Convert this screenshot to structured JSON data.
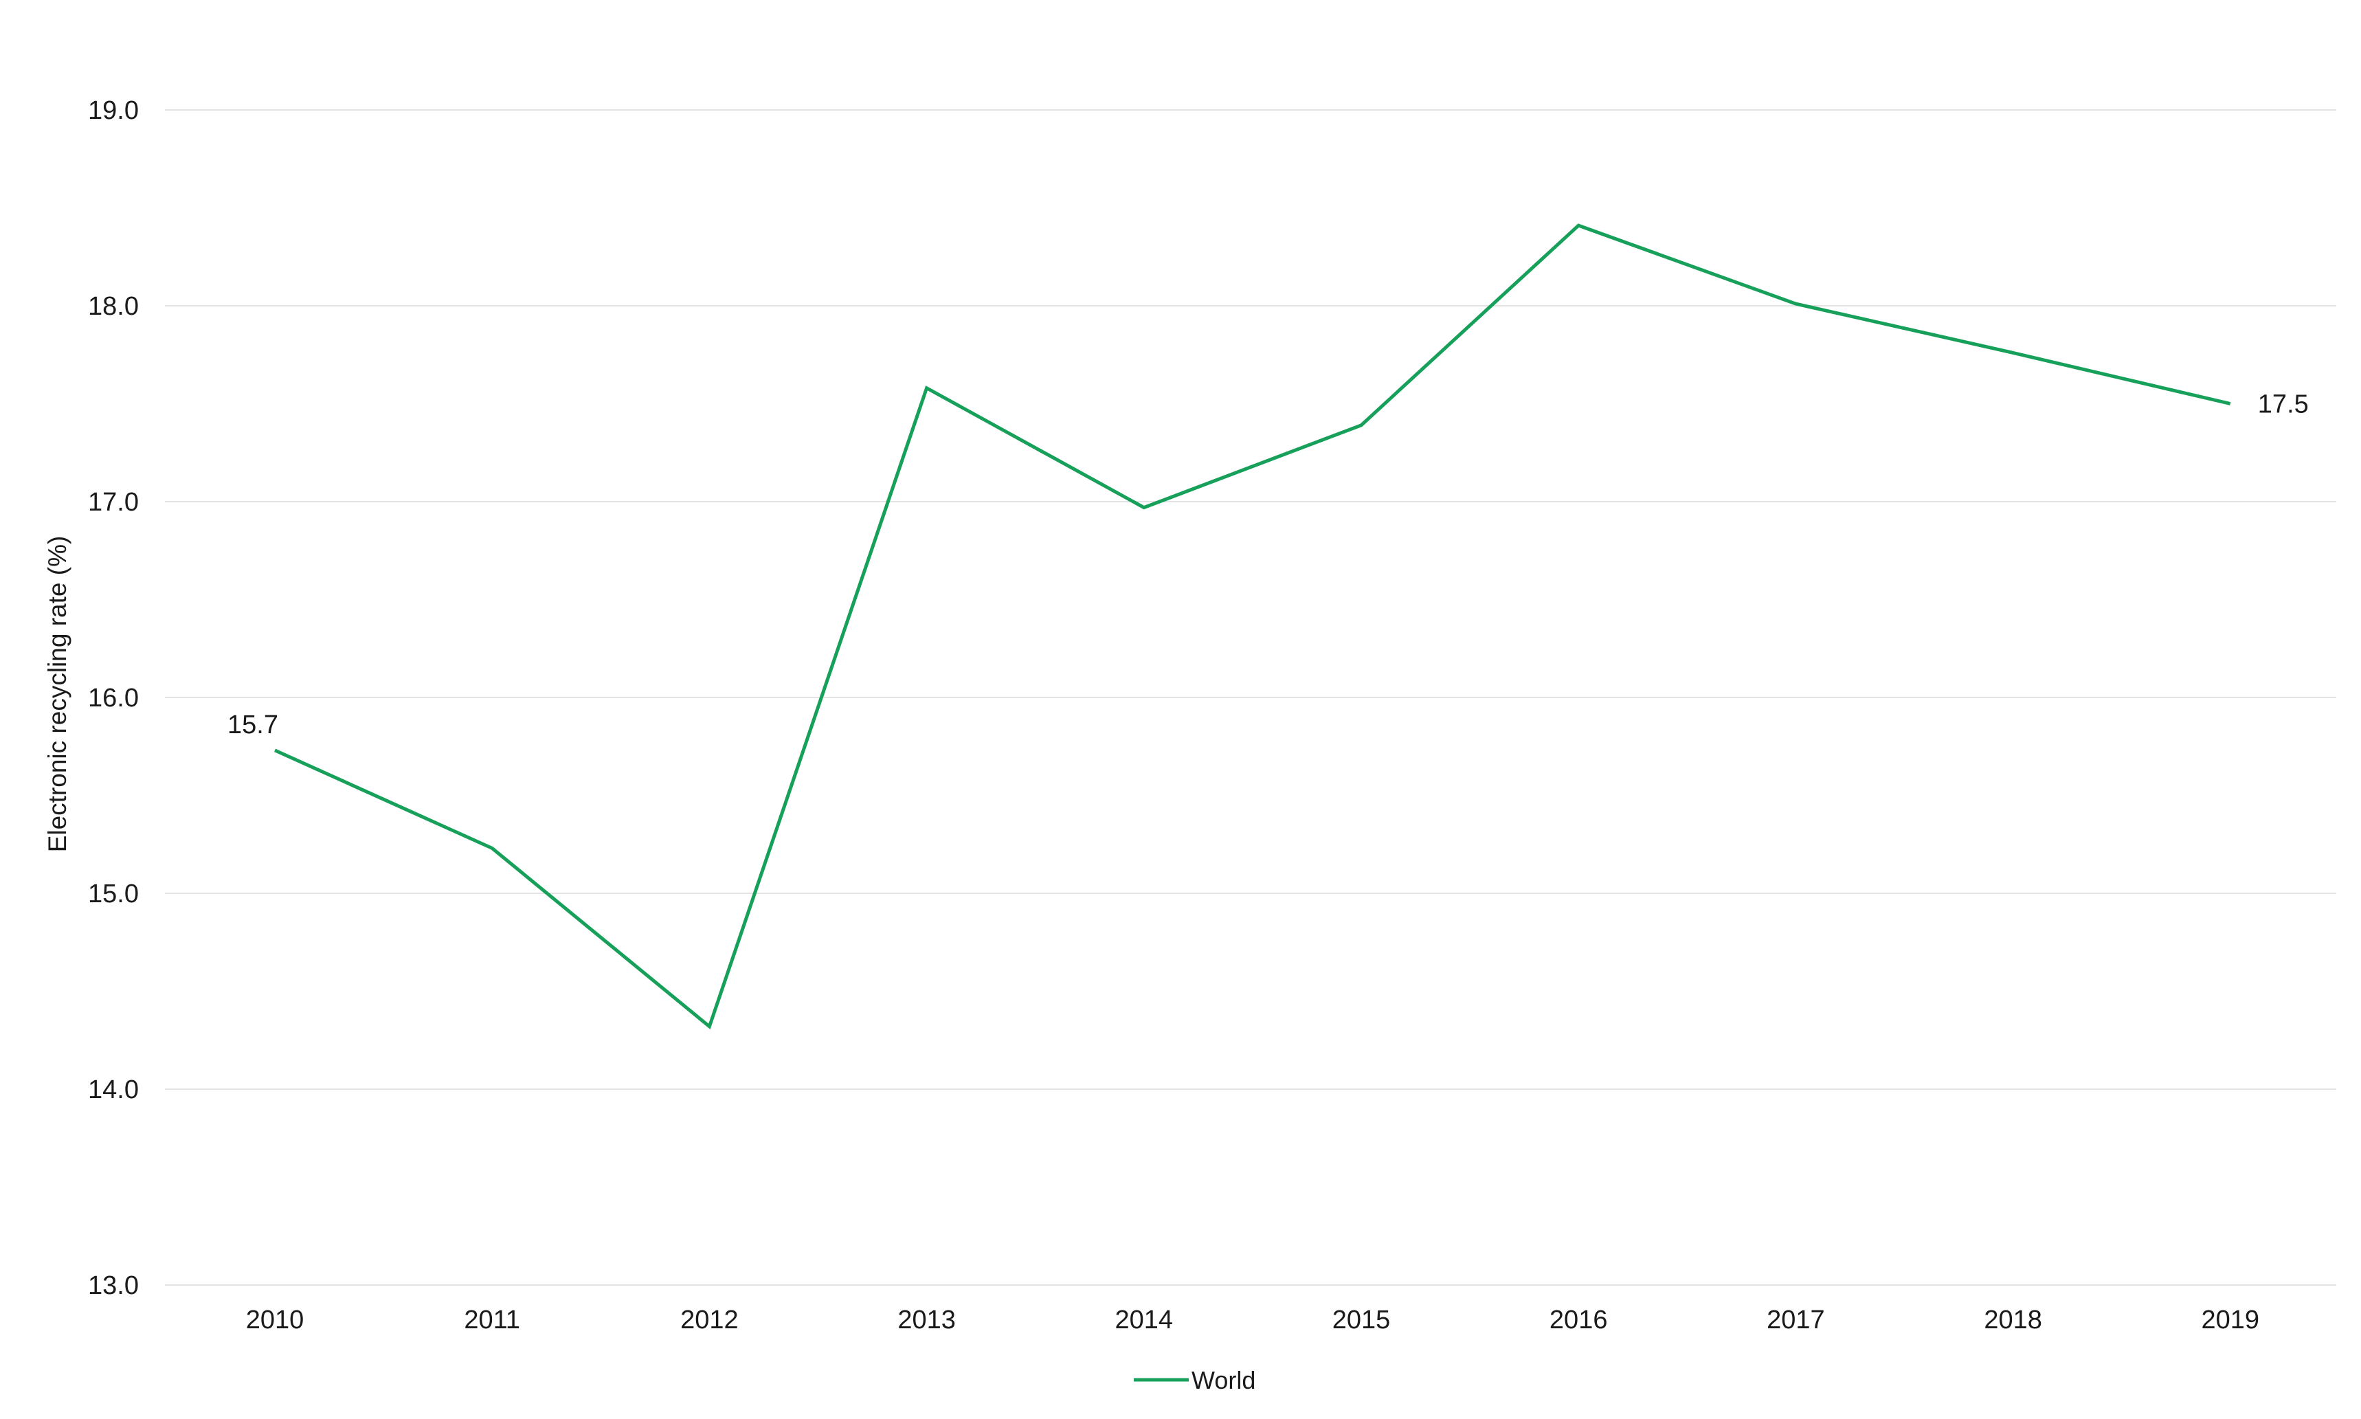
{
  "chart_data": {
    "type": "line",
    "title": "",
    "xlabel": "",
    "ylabel": "Electronic  recycling rate (%)",
    "ylim": [
      13.0,
      19.0
    ],
    "y_ticks": [
      "13.0",
      "14.0",
      "15.0",
      "16.0",
      "17.0",
      "18.0",
      "19.0"
    ],
    "categories": [
      "2010",
      "2011",
      "2012",
      "2013",
      "2014",
      "2015",
      "2016",
      "2017",
      "2018",
      "2019"
    ],
    "grid": true,
    "legend_position": "bottom-center",
    "series": [
      {
        "name": "World",
        "color": "#16a05a",
        "values": [
          15.73,
          15.23,
          14.32,
          17.58,
          16.97,
          17.39,
          18.41,
          18.01,
          17.76,
          17.5
        ]
      }
    ],
    "annotations": [
      {
        "series": 0,
        "index": 0,
        "text": "15.7",
        "placement": "above"
      },
      {
        "series": 0,
        "index": 9,
        "text": "17.5",
        "placement": "right"
      }
    ]
  }
}
